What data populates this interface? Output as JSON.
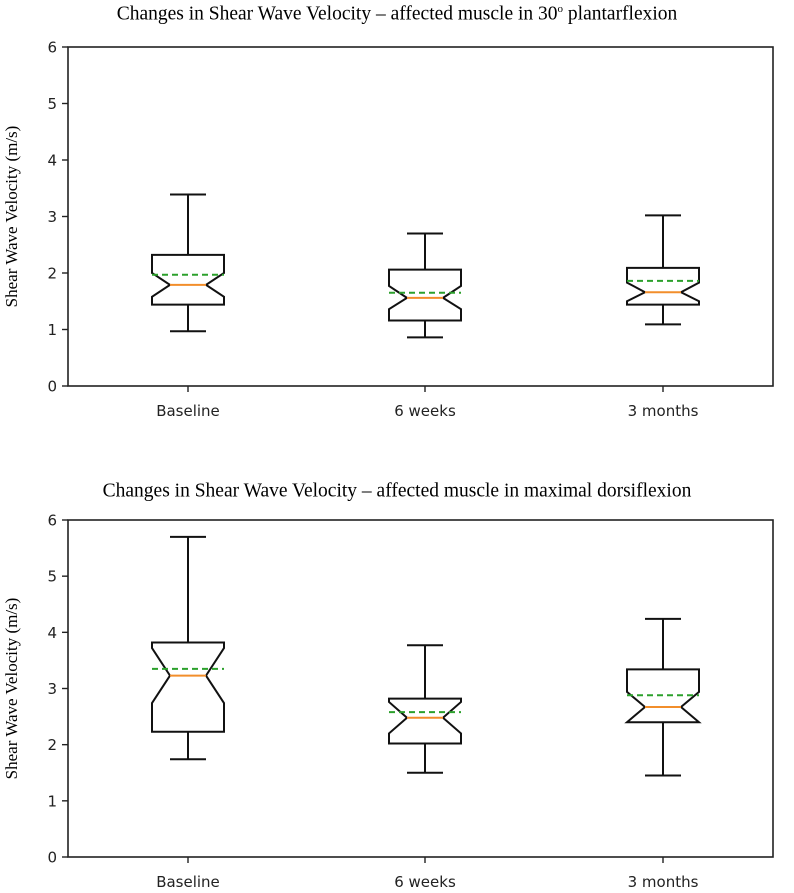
{
  "chart_data": [
    {
      "type": "box",
      "title": "Changes in Shear Wave Velocity – affected muscle in 30º plantarflexion",
      "title_main": "Changes in Shear Wave Velocity – affected muscle in 30",
      "title_sup": "o",
      "title_tail": " plantarflexion",
      "ylabel": "Shear Wave Velocity (m/s)",
      "ylim": [
        0,
        6
      ],
      "yticks": [
        "0",
        "1",
        "2",
        "3",
        "4",
        "5",
        "6"
      ],
      "categories": [
        "Baseline",
        "6 weeks",
        "3 months"
      ],
      "notched": true,
      "grid": false,
      "boxes": [
        {
          "whisker_low": 0.97,
          "q1": 1.44,
          "median": 1.79,
          "mean": 1.97,
          "q3": 2.32,
          "whisker_high": 3.39,
          "notch_low": 1.58,
          "notch_high": 2.0
        },
        {
          "whisker_low": 0.86,
          "q1": 1.16,
          "median": 1.56,
          "mean": 1.65,
          "q3": 2.06,
          "whisker_high": 2.7,
          "notch_low": 1.36,
          "notch_high": 1.77
        },
        {
          "whisker_low": 1.09,
          "q1": 1.44,
          "median": 1.66,
          "mean": 1.86,
          "q3": 2.09,
          "whisker_high": 3.02,
          "notch_low": 1.5,
          "notch_high": 1.83
        }
      ],
      "median_color": "#f28e2b",
      "mean_color": "#2ca02c"
    },
    {
      "type": "box",
      "title": "Changes in Shear Wave Velocity – affected muscle in maximal dorsiflexion",
      "title_main": "Changes in Shear Wave Velocity – affected muscle in maximal dorsiflexion",
      "title_sup": "",
      "title_tail": "",
      "ylabel": "Shear Wave Velocity (m/s)",
      "ylim": [
        0,
        6
      ],
      "yticks": [
        "0",
        "1",
        "2",
        "3",
        "4",
        "5",
        "6"
      ],
      "categories": [
        "Baseline",
        "6 weeks",
        "3 months"
      ],
      "notched": true,
      "grid": false,
      "boxes": [
        {
          "whisker_low": 1.74,
          "q1": 2.23,
          "median": 3.23,
          "mean": 3.35,
          "q3": 3.82,
          "whisker_high": 5.7,
          "notch_low": 2.74,
          "notch_high": 3.72
        },
        {
          "whisker_low": 1.5,
          "q1": 2.02,
          "median": 2.48,
          "mean": 2.58,
          "q3": 2.82,
          "whisker_high": 3.77,
          "notch_low": 2.2,
          "notch_high": 2.76
        },
        {
          "whisker_low": 1.45,
          "q1": 2.4,
          "median": 2.67,
          "mean": 2.88,
          "q3": 3.34,
          "whisker_high": 4.24,
          "notch_low": 2.4,
          "notch_high": 2.94
        }
      ],
      "median_color": "#f28e2b",
      "mean_color": "#2ca02c"
    }
  ]
}
